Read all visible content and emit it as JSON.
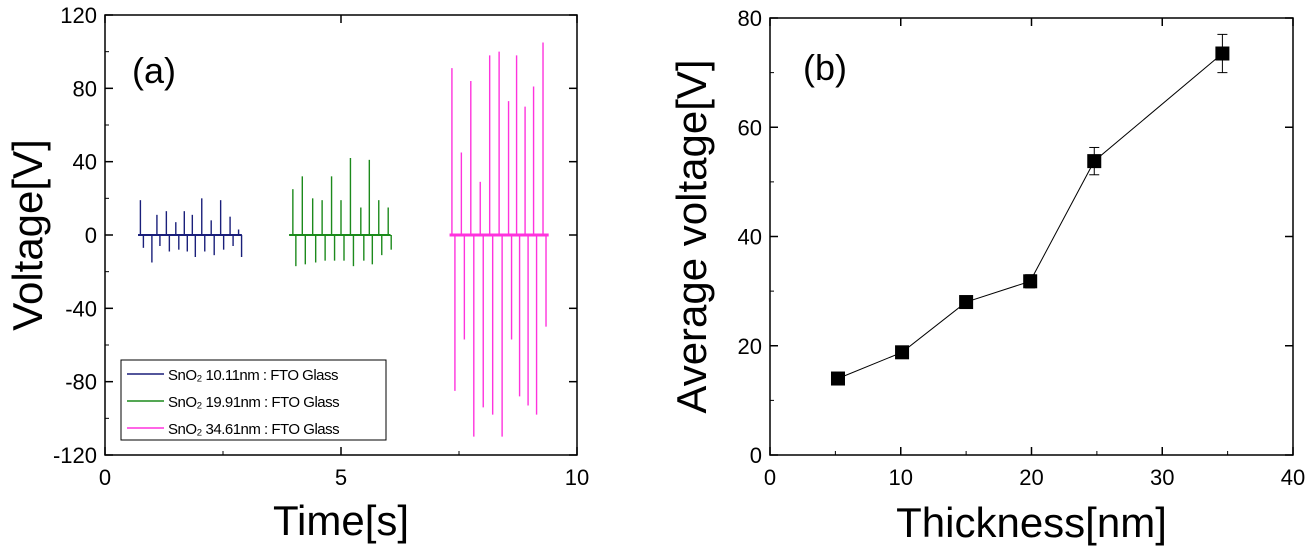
{
  "chart_data": [
    {
      "type": "line",
      "panel_label": "(a)",
      "xlabel": "Time[s]",
      "ylabel": "Voltage[V]",
      "xlim": [
        0,
        10
      ],
      "ylim": [
        -120,
        120
      ],
      "xticks": [
        0,
        5,
        10
      ],
      "yticks": [
        -120,
        -80,
        -40,
        0,
        40,
        80,
        120
      ],
      "grid": false,
      "legend_position": "bottom-left",
      "series": [
        {
          "name": "SnO₂ 10.11nm : FTO Glass",
          "color": "#1a1f7a",
          "time_range": [
            0.7,
            2.9
          ],
          "spikes": [
            {
              "t": 0.75,
              "pos": 19,
              "neg": -7
            },
            {
              "t": 0.93,
              "pos": 0,
              "neg": -15
            },
            {
              "t": 1.1,
              "pos": 11,
              "neg": -6
            },
            {
              "t": 1.3,
              "pos": 13,
              "neg": -9
            },
            {
              "t": 1.5,
              "pos": 7,
              "neg": -8
            },
            {
              "t": 1.68,
              "pos": 13,
              "neg": -9
            },
            {
              "t": 1.85,
              "pos": 11,
              "neg": -12
            },
            {
              "t": 2.05,
              "pos": 20,
              "neg": -9
            },
            {
              "t": 2.25,
              "pos": 8,
              "neg": -11
            },
            {
              "t": 2.45,
              "pos": 19,
              "neg": -8
            },
            {
              "t": 2.65,
              "pos": 10,
              "neg": -6
            },
            {
              "t": 2.83,
              "pos": 3,
              "neg": -12
            }
          ]
        },
        {
          "name": "SnO₂ 19.91nm : FTO Glass",
          "color": "#1c8a1c",
          "time_range": [
            3.9,
            6.05
          ],
          "spikes": [
            {
              "t": 3.98,
              "pos": 25,
              "neg": -17
            },
            {
              "t": 4.18,
              "pos": 32,
              "neg": -16
            },
            {
              "t": 4.4,
              "pos": 20,
              "neg": -15
            },
            {
              "t": 4.6,
              "pos": 19,
              "neg": -14
            },
            {
              "t": 4.8,
              "pos": 32,
              "neg": -14
            },
            {
              "t": 5.0,
              "pos": 19,
              "neg": -14
            },
            {
              "t": 5.2,
              "pos": 42,
              "neg": -17
            },
            {
              "t": 5.42,
              "pos": 15,
              "neg": -14
            },
            {
              "t": 5.6,
              "pos": 41,
              "neg": -16
            },
            {
              "t": 5.8,
              "pos": 19,
              "neg": -11
            },
            {
              "t": 6.0,
              "pos": 15,
              "neg": -8
            }
          ]
        },
        {
          "name": "SnO₂ 34.61nm : FTO Glass",
          "color": "#ff33dd",
          "time_range": [
            7.3,
            9.4
          ],
          "spikes": [
            {
              "t": 7.35,
              "pos": 91,
              "neg": -85
            },
            {
              "t": 7.55,
              "pos": 45,
              "neg": -57
            },
            {
              "t": 7.75,
              "pos": 84,
              "neg": -110
            },
            {
              "t": 7.95,
              "pos": 29,
              "neg": -94
            },
            {
              "t": 8.15,
              "pos": 98,
              "neg": -98
            },
            {
              "t": 8.35,
              "pos": 100,
              "neg": -110
            },
            {
              "t": 8.55,
              "pos": 73,
              "neg": -57
            },
            {
              "t": 8.72,
              "pos": 98,
              "neg": -88
            },
            {
              "t": 8.9,
              "pos": 70,
              "neg": -93
            },
            {
              "t": 9.08,
              "pos": 81,
              "neg": -98
            },
            {
              "t": 9.28,
              "pos": 105,
              "neg": -50
            }
          ]
        }
      ]
    },
    {
      "type": "line",
      "panel_label": "(b)",
      "xlabel": "Thickness[nm]",
      "ylabel": "Average voltage[V]",
      "xlim": [
        0,
        40
      ],
      "ylim": [
        0,
        80
      ],
      "xticks": [
        0,
        10,
        20,
        30,
        40
      ],
      "yticks": [
        0,
        20,
        40,
        60,
        80
      ],
      "grid": false,
      "marker": "square",
      "color": "#000000",
      "series": [
        {
          "name": "",
          "x": [
            5.2,
            10.1,
            15.0,
            19.9,
            24.8,
            34.6
          ],
          "y": [
            14,
            18.8,
            28,
            31.8,
            53.8,
            73.5
          ],
          "yerr": [
            0.5,
            0.5,
            0.7,
            1.2,
            2.5,
            3.5
          ]
        }
      ]
    }
  ]
}
